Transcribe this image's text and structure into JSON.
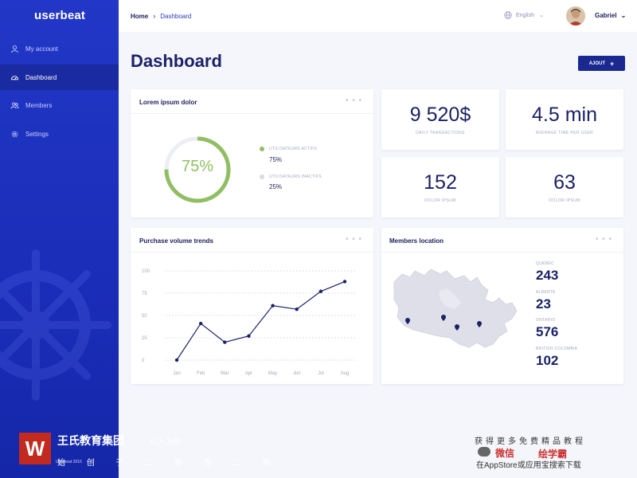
{
  "app": {
    "logo": "userbeat"
  },
  "sidebar": {
    "items": [
      {
        "label": "My account",
        "icon": "user-icon",
        "active": false
      },
      {
        "label": "Dashboard",
        "icon": "gauge-icon",
        "active": true
      },
      {
        "label": "Members",
        "icon": "members-icon",
        "active": false
      },
      {
        "label": "Settings",
        "icon": "gear-icon",
        "active": false
      }
    ]
  },
  "topbar": {
    "breadcrumb": {
      "home": "Home",
      "separator": "›",
      "current": "Dashboard"
    },
    "language": "English",
    "user_name": "Gabriel"
  },
  "page": {
    "title": "Dashboard",
    "add_button": "AJOUT",
    "add_icon": "+"
  },
  "donut_card": {
    "title": "Lorem ipsum dolor",
    "menu": "• • •",
    "percent_label": "75%",
    "active_fraction": 0.75,
    "legend": [
      {
        "label": "UTILISATEURS ACTIFS",
        "value": "75%",
        "color": "#8fbf62"
      },
      {
        "label": "UTILISATEURS INACTIFS",
        "value": "25%",
        "color": "#d8dae3"
      }
    ]
  },
  "stats": [
    {
      "value": "9 520$",
      "label": "DAILY TRANSACTIONS"
    },
    {
      "value": "4.5 min",
      "label": "AVERAGE TIME PER USER"
    },
    {
      "value": "152",
      "label": "DOLOR IPSUM"
    },
    {
      "value": "63",
      "label": "DOLOR IPSUM"
    }
  ],
  "trend_card": {
    "title": "Purchase volume trends",
    "menu": "• • •"
  },
  "chart_data": {
    "type": "line",
    "title": "Purchase volume trends",
    "xlabel": "",
    "ylabel": "",
    "x_ticks": [
      "Jan",
      "Feb",
      "Mar",
      "Apr",
      "May",
      "Jun",
      "Jul",
      "Aug"
    ],
    "y_ticks": [
      "100",
      "75",
      "50",
      "25",
      "0"
    ],
    "ylim": [
      0,
      100
    ],
    "grid": true,
    "series": [
      {
        "color": "#1b2267",
        "x": [
          0,
          1,
          2,
          3,
          4,
          5,
          6,
          7
        ],
        "values": [
          0,
          41,
          20,
          27,
          61,
          57,
          77,
          88
        ]
      }
    ]
  },
  "location_card": {
    "title": "Members location",
    "menu": "• • •",
    "locations": [
      {
        "name": "QUÉBEC",
        "value": "243"
      },
      {
        "name": "ALBERTA",
        "value": "23"
      },
      {
        "name": "ONTARIO",
        "value": "576"
      },
      {
        "name": "BRITISH COLOMBIA",
        "value": "102"
      }
    ]
  },
  "watermark": {
    "logo_letter": "W",
    "brand": "王氏教育集团",
    "slogan": "以人为本",
    "sub": "始 创 于 二 零 零 二 年",
    "copyright": "Userbeat 2016",
    "right_line1": "获得更多免费精品教程",
    "right_line2a": "微信",
    "right_line2b": "绘学霸",
    "right_line3": "在AppStore或应用宝搜索下载"
  },
  "colors": {
    "sidebar": "#1f33c2",
    "accent": "#1a2890",
    "donut": "#8fbf62",
    "line": "#1b2267"
  }
}
